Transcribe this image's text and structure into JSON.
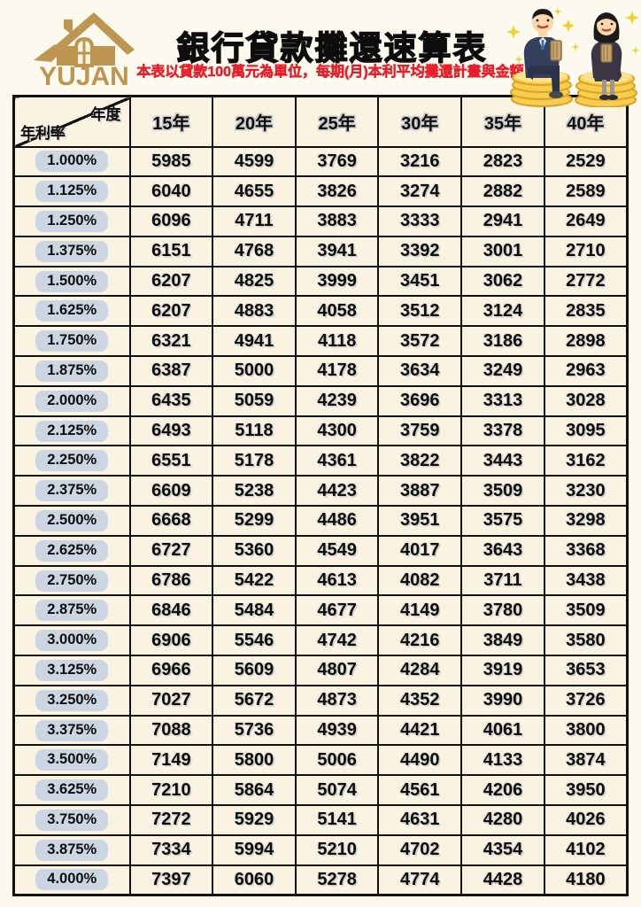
{
  "header": {
    "logo_text": "YUJAN",
    "title": "銀行貸款攤還速算表",
    "subtitle": "本表以貸款100萬元為單位，每期(月)本利平均攤還計畫與金額"
  },
  "icons": {
    "logo": "gold-house-logo",
    "illustration": "man-and-woman-sitting-on-coin-stacks-holding-cash"
  },
  "colors": {
    "page_background": "#fcf9ee",
    "cell_background": "#faf3e1",
    "border": "#111111",
    "logo_gold": "#bd9752",
    "subtitle_red": "#e71f2b",
    "rate_pill": "#ccd6e3",
    "coin_gold": "#f8cc4d",
    "sparkle_yellow": "#f3d02c"
  },
  "table": {
    "corner": {
      "top_label": "年度",
      "bottom_label": "年利率"
    },
    "columns": [
      "15年",
      "20年",
      "25年",
      "30年",
      "35年",
      "40年"
    ],
    "rows": [
      {
        "rate": "1.000%",
        "values": [
          "5985",
          "4599",
          "3769",
          "3216",
          "2823",
          "2529"
        ]
      },
      {
        "rate": "1.125%",
        "values": [
          "6040",
          "4655",
          "3826",
          "3274",
          "2882",
          "2589"
        ]
      },
      {
        "rate": "1.250%",
        "values": [
          "6096",
          "4711",
          "3883",
          "3333",
          "2941",
          "2649"
        ]
      },
      {
        "rate": "1.375%",
        "values": [
          "6151",
          "4768",
          "3941",
          "3392",
          "3001",
          "2710"
        ]
      },
      {
        "rate": "1.500%",
        "values": [
          "6207",
          "4825",
          "3999",
          "3451",
          "3062",
          "2772"
        ]
      },
      {
        "rate": "1.625%",
        "values": [
          "6207",
          "4883",
          "4058",
          "3512",
          "3124",
          "2835"
        ]
      },
      {
        "rate": "1.750%",
        "values": [
          "6321",
          "4941",
          "4118",
          "3572",
          "3186",
          "2898"
        ]
      },
      {
        "rate": "1.875%",
        "values": [
          "6387",
          "5000",
          "4178",
          "3634",
          "3249",
          "2963"
        ]
      },
      {
        "rate": "2.000%",
        "values": [
          "6435",
          "5059",
          "4239",
          "3696",
          "3313",
          "3028"
        ]
      },
      {
        "rate": "2.125%",
        "values": [
          "6493",
          "5118",
          "4300",
          "3759",
          "3378",
          "3095"
        ]
      },
      {
        "rate": "2.250%",
        "values": [
          "6551",
          "5178",
          "4361",
          "3822",
          "3443",
          "3162"
        ]
      },
      {
        "rate": "2.375%",
        "values": [
          "6609",
          "5238",
          "4423",
          "3887",
          "3509",
          "3230"
        ]
      },
      {
        "rate": "2.500%",
        "values": [
          "6668",
          "5299",
          "4486",
          "3951",
          "3575",
          "3298"
        ]
      },
      {
        "rate": "2.625%",
        "values": [
          "6727",
          "5360",
          "4549",
          "4017",
          "3643",
          "3368"
        ]
      },
      {
        "rate": "2.750%",
        "values": [
          "6786",
          "5422",
          "4613",
          "4082",
          "3711",
          "3438"
        ]
      },
      {
        "rate": "2.875%",
        "values": [
          "6846",
          "5484",
          "4677",
          "4149",
          "3780",
          "3509"
        ]
      },
      {
        "rate": "3.000%",
        "values": [
          "6906",
          "5546",
          "4742",
          "4216",
          "3849",
          "3580"
        ]
      },
      {
        "rate": "3.125%",
        "values": [
          "6966",
          "5609",
          "4807",
          "4284",
          "3919",
          "3653"
        ]
      },
      {
        "rate": "3.250%",
        "values": [
          "7027",
          "5672",
          "4873",
          "4352",
          "3990",
          "3726"
        ]
      },
      {
        "rate": "3.375%",
        "values": [
          "7088",
          "5736",
          "4939",
          "4421",
          "4061",
          "3800"
        ]
      },
      {
        "rate": "3.500%",
        "values": [
          "7149",
          "5800",
          "5006",
          "4490",
          "4133",
          "3874"
        ]
      },
      {
        "rate": "3.625%",
        "values": [
          "7210",
          "5864",
          "5074",
          "4561",
          "4206",
          "3950"
        ]
      },
      {
        "rate": "3.750%",
        "values": [
          "7272",
          "5929",
          "5141",
          "4631",
          "4280",
          "4026"
        ]
      },
      {
        "rate": "3.875%",
        "values": [
          "7334",
          "5994",
          "5210",
          "4702",
          "4354",
          "4102"
        ]
      },
      {
        "rate": "4.000%",
        "values": [
          "7397",
          "6060",
          "5278",
          "4774",
          "4428",
          "4180"
        ]
      }
    ]
  }
}
